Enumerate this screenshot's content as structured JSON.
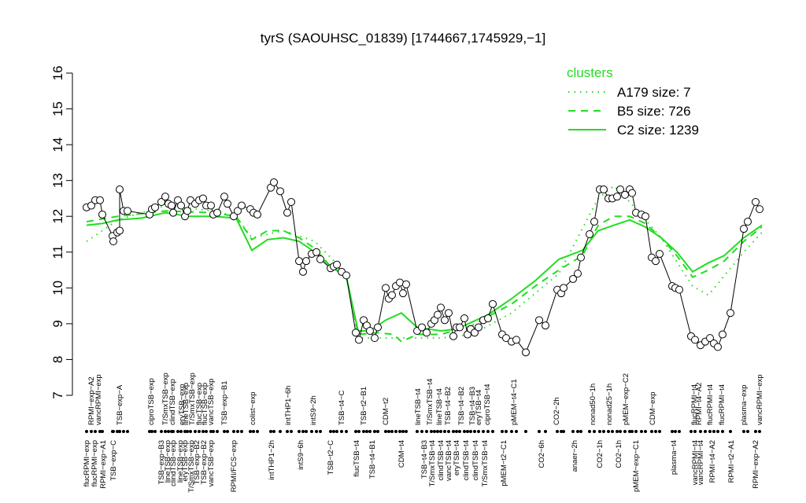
{
  "chart_data": {
    "type": "line",
    "title": "tyrS (SAOUHSC_01839) [1744667,1745929,−1]",
    "ylim": [
      7,
      16
    ],
    "yticks": [
      7,
      8,
      9,
      10,
      11,
      12,
      13,
      14,
      15,
      16
    ],
    "xlim": [
      0,
      875
    ],
    "legend_title": "clusters",
    "legend_position": "top-right",
    "observed": {
      "color": "#000000",
      "x": [
        10,
        16,
        21,
        27,
        30,
        43,
        44,
        49,
        52,
        52,
        57,
        62,
        90,
        93,
        97,
        105,
        110,
        114,
        118,
        120,
        126,
        130,
        135,
        138,
        142,
        148,
        153,
        158,
        162,
        168,
        171,
        176,
        185,
        189,
        197,
        202,
        207,
        218,
        222,
        227,
        244,
        248,
        256,
        265,
        270,
        280,
        285,
        289,
        296,
        302,
        307,
        320,
        324,
        328,
        334,
        340,
        352,
        356,
        362,
        366,
        370,
        376,
        380,
        390,
        394,
        398,
        403,
        408,
        412,
        416,
        430,
        436,
        442,
        448,
        452,
        456,
        460,
        465,
        470,
        476,
        480,
        484,
        490,
        494,
        498,
        503,
        508,
        514,
        520,
        526,
        538,
        543,
        550,
        556,
        568,
        585,
        593,
        608,
        613,
        616,
        628,
        634,
        638,
        649,
        655,
        662,
        667,
        673,
        678,
        684,
        688,
        694,
        700,
        703,
        708,
        715,
        720,
        728,
        733,
        738,
        754,
        758,
        763,
        778,
        783,
        790,
        796,
        802,
        807,
        812,
        818,
        828,
        845,
        850,
        860,
        865
      ],
      "values": [
        12.25,
        12.3,
        12.45,
        12.45,
        12.05,
        11.45,
        11.3,
        11.55,
        11.6,
        12.75,
        12.15,
        12.15,
        12.05,
        12.2,
        12.25,
        12.4,
        12.55,
        12.35,
        12.3,
        12.1,
        12.45,
        12.3,
        12.0,
        12.15,
        12.45,
        12.35,
        12.45,
        12.5,
        12.3,
        12.3,
        12.05,
        12.1,
        12.55,
        12.35,
        12.0,
        12.15,
        12.3,
        12.2,
        12.1,
        12.05,
        12.8,
        12.95,
        12.7,
        12.1,
        12.4,
        10.75,
        10.45,
        10.75,
        10.95,
        11.0,
        10.8,
        10.55,
        10.6,
        10.65,
        10.45,
        10.35,
        8.75,
        8.55,
        9.1,
        8.95,
        8.8,
        8.6,
        8.9,
        10.0,
        9.7,
        9.8,
        10.05,
        10.15,
        9.85,
        10.1,
        8.8,
        8.9,
        8.75,
        9.0,
        9.1,
        9.25,
        9.45,
        9.1,
        9.3,
        8.65,
        8.9,
        8.9,
        9.15,
        8.7,
        8.85,
        8.75,
        8.9,
        9.1,
        9.15,
        9.55,
        8.7,
        8.6,
        8.5,
        8.55,
        8.2,
        9.1,
        8.95,
        9.95,
        9.85,
        10.0,
        10.25,
        10.4,
        10.85,
        11.5,
        11.85,
        12.75,
        12.75,
        12.5,
        12.5,
        12.55,
        12.75,
        12.6,
        12.75,
        12.65,
        12.1,
        12.05,
        12.0,
        10.85,
        10.75,
        10.95,
        10.05,
        10.0,
        9.95,
        8.65,
        8.55,
        8.4,
        8.5,
        8.6,
        8.45,
        8.35,
        8.7,
        9.3,
        11.65,
        11.85,
        12.4,
        12.2
      ]
    },
    "series": [
      {
        "name": "A179 size: 7",
        "color": "#22dd22",
        "dash": "dotted",
        "x": [
          10,
          50,
          110,
          170,
          200,
          220,
          260,
          300,
          340,
          355,
          400,
          430,
          460,
          500,
          550,
          610,
          660,
          680,
          700,
          740,
          780,
          800,
          845,
          868
        ],
        "values": [
          11.3,
          11.9,
          12.3,
          12.15,
          12.0,
          11.4,
          11.6,
          11.3,
          10.4,
          8.6,
          8.6,
          8.6,
          8.6,
          8.7,
          9.3,
          10.4,
          12.5,
          12.85,
          12.4,
          11.4,
          10.05,
          9.8,
          11.0,
          11.55
        ]
      },
      {
        "name": "B5 size: 726",
        "color": "#22dd22",
        "dash": "dashed",
        "x": [
          10,
          50,
          110,
          170,
          200,
          220,
          240,
          260,
          280,
          300,
          320,
          340,
          355,
          380,
          400,
          410,
          430,
          460,
          500,
          520,
          550,
          580,
          610,
          640,
          660,
          680,
          700,
          720,
          740,
          760,
          780,
          800,
          820,
          845,
          868
        ],
        "values": [
          11.85,
          12.0,
          12.15,
          12.1,
          12.0,
          11.35,
          11.6,
          11.6,
          11.4,
          11.1,
          10.6,
          10.35,
          8.7,
          8.75,
          8.7,
          8.5,
          8.7,
          8.7,
          8.95,
          9.2,
          9.55,
          10.05,
          10.5,
          10.9,
          11.75,
          12.0,
          12.0,
          11.8,
          11.4,
          10.9,
          10.3,
          10.5,
          10.75,
          11.3,
          11.7
        ]
      },
      {
        "name": "C2 size: 1239",
        "color": "#22dd22",
        "dash": "solid",
        "x": [
          10,
          30,
          50,
          80,
          110,
          140,
          170,
          200,
          220,
          240,
          260,
          280,
          300,
          320,
          340,
          355,
          370,
          390,
          410,
          430,
          460,
          480,
          520,
          550,
          580,
          610,
          640,
          660,
          680,
          700,
          720,
          740,
          760,
          780,
          800,
          820,
          845,
          868
        ],
        "values": [
          11.75,
          11.8,
          11.9,
          11.95,
          12.1,
          12.0,
          12.0,
          11.95,
          11.05,
          11.35,
          11.4,
          11.3,
          11.0,
          10.6,
          10.3,
          8.8,
          8.8,
          9.1,
          9.3,
          8.9,
          8.8,
          8.85,
          9.25,
          9.7,
          10.2,
          10.8,
          11.05,
          11.6,
          11.75,
          11.9,
          11.7,
          11.4,
          11.0,
          10.45,
          10.7,
          10.9,
          11.4,
          11.75
        ]
      }
    ],
    "top_labels": [
      {
        "x": 16,
        "label": "RPMI−exp−A2"
      },
      {
        "x": 25,
        "label": "vancRPMI−exp"
      },
      {
        "x": 52,
        "label": "TSB−exp−A"
      },
      {
        "x": 92,
        "label": "ciproTSB−exp"
      },
      {
        "x": 110,
        "label": "T/SmxTSB−exp"
      },
      {
        "x": 119,
        "label": "clindTSB−exp"
      },
      {
        "x": 131,
        "label": "eryTSB−exp"
      },
      {
        "x": 136,
        "label": "lineTSB−exp"
      },
      {
        "x": 144,
        "label": "T/SmxTSB−exp"
      },
      {
        "x": 153,
        "label": "flucTSB−exp"
      },
      {
        "x": 160,
        "label": "flucTSB−exp"
      },
      {
        "x": 168,
        "label": "vancTSB−exp"
      },
      {
        "x": 185,
        "label": "TSB−exp−B1"
      },
      {
        "x": 221,
        "label": "colist−exp"
      },
      {
        "x": 266,
        "label": "intTHP1−6h"
      },
      {
        "x": 298,
        "label": "intS9−2h"
      },
      {
        "x": 334,
        "label": "TSB−t4−C"
      },
      {
        "x": 362,
        "label": "TSB−t2−B1"
      },
      {
        "x": 390,
        "label": "CDM−t2"
      },
      {
        "x": 431,
        "label": "lineTSB−t4"
      },
      {
        "x": 446,
        "label": "T/SmxTSB−t4"
      },
      {
        "x": 458,
        "label": "lineTSB−t4"
      },
      {
        "x": 469,
        "label": "TSB−t4−B2"
      },
      {
        "x": 486,
        "label": "TSB−t4−B2"
      },
      {
        "x": 500,
        "label": "TSB−t4−B3"
      },
      {
        "x": 508,
        "label": "eryTSB−t4"
      },
      {
        "x": 519,
        "label": "ciproTSB−t4"
      },
      {
        "x": 553,
        "label": "pMEM−t4−C1"
      },
      {
        "x": 607,
        "label": "CO2−2h"
      },
      {
        "x": 653,
        "label": "nonad50−1h"
      },
      {
        "x": 674,
        "label": "nonad25−1h"
      },
      {
        "x": 695,
        "label": "pMEM−exp−C2"
      },
      {
        "x": 729,
        "label": "CDM−exp"
      },
      {
        "x": 782,
        "label": "flucRPMI−t4"
      },
      {
        "x": 788,
        "label": "RPMI−t4−A2"
      },
      {
        "x": 802,
        "label": "flucRPMI−t4"
      },
      {
        "x": 817,
        "label": "flucRPMI−t4"
      },
      {
        "x": 845,
        "label": "plasma−exp"
      },
      {
        "x": 865,
        "label": "vancRPMI−exp"
      }
    ],
    "bottom_labels": [
      {
        "x": 10,
        "label": "flucRPMI−exp"
      },
      {
        "x": 20,
        "label": "flucRPMI−exp"
      },
      {
        "x": 31,
        "label": "RPMI−exp−A1"
      },
      {
        "x": 44,
        "label": "TSB−exp−C"
      },
      {
        "x": 105,
        "label": "TSB−exp−B3"
      },
      {
        "x": 113,
        "label": "lineTSB−exp"
      },
      {
        "x": 120,
        "label": "clindTSB−exp"
      },
      {
        "x": 129,
        "label": "lineTSB−exp"
      },
      {
        "x": 135,
        "label": "eryTSB−exp"
      },
      {
        "x": 143,
        "label": "T/SmxTSB−exp"
      },
      {
        "x": 150,
        "label": "TSB−exp−B2"
      },
      {
        "x": 159,
        "label": "TSB−exp−B2"
      },
      {
        "x": 168,
        "label": "vancTSB−exp"
      },
      {
        "x": 197,
        "label": "RPMI/FCS−exp"
      },
      {
        "x": 245,
        "label": "intTHP1−2h"
      },
      {
        "x": 282,
        "label": "intS9−6h"
      },
      {
        "x": 320,
        "label": "TSB−t2−C"
      },
      {
        "x": 353,
        "label": "flucTSB−t4"
      },
      {
        "x": 373,
        "label": "TSB−t4−B1"
      },
      {
        "x": 410,
        "label": "CDM−t4"
      },
      {
        "x": 439,
        "label": "TSB−t4−B3"
      },
      {
        "x": 449,
        "label": "T/SmxTSB−t4"
      },
      {
        "x": 460,
        "label": "clindTSB−t4"
      },
      {
        "x": 470,
        "label": "vancTSB−t4"
      },
      {
        "x": 480,
        "label": "eryTSB−t4"
      },
      {
        "x": 492,
        "label": "clindTSB−t4"
      },
      {
        "x": 504,
        "label": "clindTSB−t4"
      },
      {
        "x": 516,
        "label": "T/SmxTSB−t4"
      },
      {
        "x": 540,
        "label": "pMEM−t2−C1"
      },
      {
        "x": 588,
        "label": "CO2−6h"
      },
      {
        "x": 630,
        "label": "anaer−2h"
      },
      {
        "x": 662,
        "label": "CO2−1h"
      },
      {
        "x": 686,
        "label": "CO2−1h"
      },
      {
        "x": 708,
        "label": "pMEM−exp−C1"
      },
      {
        "x": 756,
        "label": "plasma−t4"
      },
      {
        "x": 783,
        "label": "vancRPMI−t4"
      },
      {
        "x": 790,
        "label": "vancRPMI−t4"
      },
      {
        "x": 805,
        "label": "RPMI−t4−A2"
      },
      {
        "x": 829,
        "label": "RPMI−t2−A1"
      },
      {
        "x": 860,
        "label": "RPMI−exp−A2"
      }
    ]
  }
}
